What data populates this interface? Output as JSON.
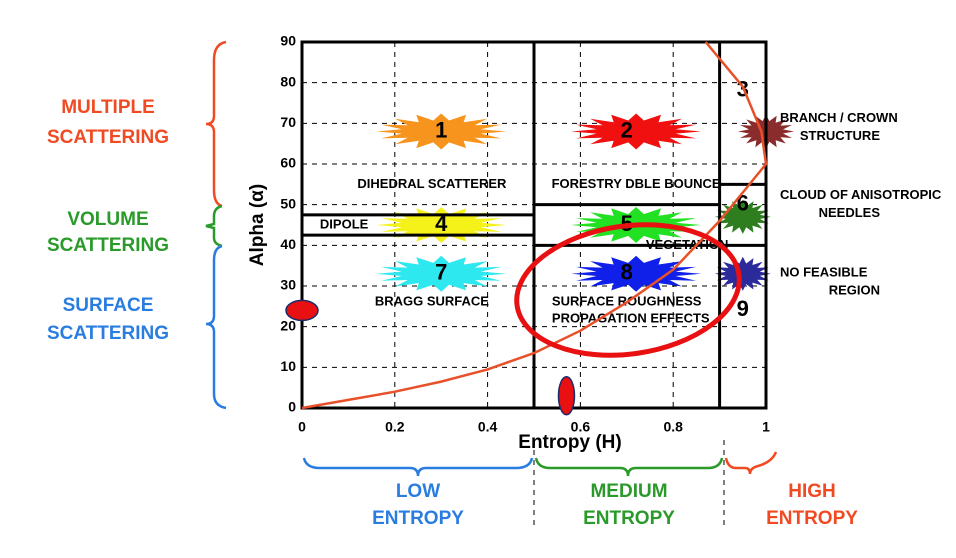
{
  "chart_data": {
    "type": "h-alpha-plane",
    "xlabel": "Entropy (H)",
    "ylabel": "Alpha (α)",
    "xlim": [
      0,
      1
    ],
    "ylim": [
      0,
      90
    ],
    "xticks": [
      0,
      0.2,
      0.4,
      0.6,
      0.8,
      1
    ],
    "yticks": [
      0,
      10,
      20,
      30,
      40,
      50,
      60,
      70,
      80,
      90
    ],
    "grid": true,
    "boundaries": [
      {
        "x": [
          0.5,
          0.5
        ],
        "y": [
          0,
          90
        ]
      },
      {
        "x": [
          0.9,
          0.9
        ],
        "y": [
          0,
          90
        ]
      },
      {
        "x": [
          0,
          0.5
        ],
        "y": [
          47.5,
          47.5
        ]
      },
      {
        "x": [
          0,
          0.5
        ],
        "y": [
          42.5,
          42.5
        ]
      },
      {
        "x": [
          0.5,
          0.9
        ],
        "y": [
          50,
          50
        ]
      },
      {
        "x": [
          0.5,
          0.9
        ],
        "y": [
          40,
          40
        ]
      },
      {
        "x": [
          0.9,
          1
        ],
        "y": [
          55,
          55
        ]
      },
      {
        "x": [
          0.9,
          1
        ],
        "y": [
          40,
          40
        ]
      }
    ],
    "curve": {
      "color": "#e8502a",
      "x": [
        0,
        0.1,
        0.2,
        0.3,
        0.4,
        0.5,
        0.6,
        0.7,
        0.8,
        0.9,
        0.95,
        1,
        0.99,
        0.95,
        0.87
      ],
      "y": [
        0,
        2,
        4,
        6.5,
        9.5,
        13.5,
        19,
        26,
        34,
        46,
        53,
        60,
        68,
        79,
        90
      ]
    },
    "zones": [
      {
        "number": "1",
        "color": "#f7941d",
        "description": [
          "DIHEDRAL SCATTERER"
        ]
      },
      {
        "number": "2",
        "color": "#f01010",
        "description": [
          "FORESTRY DBLE BOUNCE"
        ]
      },
      {
        "number": "3",
        "color": "#8b2c2c",
        "description": [
          "BRANCH / CROWN",
          "STRUCTURE"
        ]
      },
      {
        "number": "4",
        "color": "#f5f21a",
        "description": [
          "DIPOLE"
        ]
      },
      {
        "number": "5",
        "color": "#22e022",
        "description": [
          "VEGETATION"
        ]
      },
      {
        "number": "6",
        "color": "#2e7d1e",
        "description": [
          "CLOUD OF ANISOTROPIC",
          "NEEDLES"
        ]
      },
      {
        "number": "7",
        "color": "#2ee8f0",
        "description": [
          "BRAGG SURFACE"
        ]
      },
      {
        "number": "8",
        "color": "#1020e8",
        "description": [
          "SURFACE ROUGHNESS",
          "PROPAGATION EFFECTS"
        ]
      },
      {
        "number": "9",
        "color": "#2a2a9a",
        "description": [
          "NO FEASIBLE",
          "REGION"
        ]
      }
    ],
    "markers": [
      {
        "x": 0,
        "y": 24,
        "color": "#e81010"
      },
      {
        "x": 0.57,
        "y": 3,
        "color": "#e81010"
      }
    ],
    "scattering": [
      {
        "lines": [
          "MULTIPLE",
          "SCATTERING"
        ],
        "color": "#f04a23"
      },
      {
        "lines": [
          "VOLUME",
          "SCATTERING"
        ],
        "color": "#2a9a2a"
      },
      {
        "lines": [
          "SURFACE",
          "SCATTERING"
        ],
        "color": "#2a7de0"
      }
    ],
    "entropy": [
      {
        "lines": [
          "LOW",
          "ENTROPY"
        ],
        "color": "#2a7de0"
      },
      {
        "lines": [
          "MEDIUM",
          "ENTROPY"
        ],
        "color": "#2a9a2a"
      },
      {
        "lines": [
          "HIGH",
          "ENTROPY"
        ],
        "color": "#f04a23"
      }
    ]
  }
}
